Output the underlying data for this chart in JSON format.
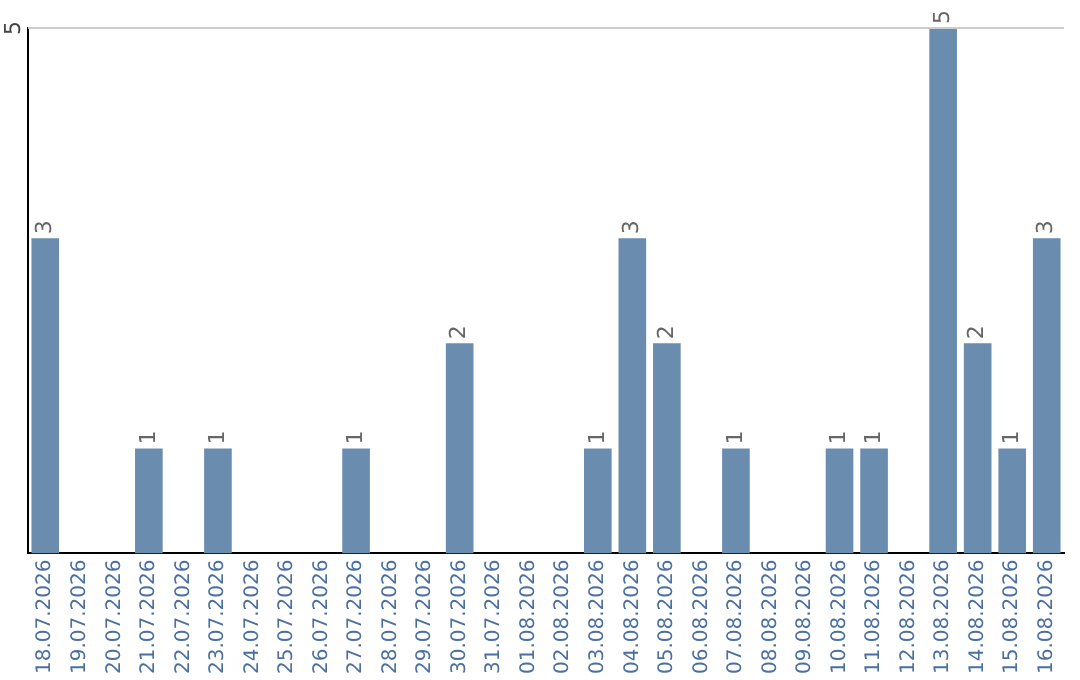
{
  "chart_data": {
    "type": "bar",
    "categories": [
      "18.07.2026",
      "19.07.2026",
      "20.07.2026",
      "21.07.2026",
      "22.07.2026",
      "23.07.2026",
      "24.07.2026",
      "25.07.2026",
      "26.07.2026",
      "27.07.2026",
      "28.07.2026",
      "29.07.2026",
      "30.07.2026",
      "31.07.2026",
      "01.08.2026",
      "02.08.2026",
      "03.08.2026",
      "04.08.2026",
      "05.08.2026",
      "06.08.2026",
      "07.08.2026",
      "08.08.2026",
      "09.08.2026",
      "10.08.2026",
      "11.08.2026",
      "12.08.2026",
      "13.08.2026",
      "14.08.2026",
      "15.08.2026",
      "16.08.2026"
    ],
    "values": [
      3,
      0,
      0,
      1,
      0,
      1,
      0,
      0,
      0,
      1,
      0,
      0,
      2,
      0,
      0,
      0,
      1,
      3,
      2,
      0,
      1,
      0,
      0,
      1,
      1,
      0,
      5,
      2,
      1,
      3
    ],
    "value_labels": [
      "3",
      null,
      null,
      "1",
      null,
      "1",
      null,
      null,
      null,
      "1",
      null,
      null,
      "2",
      null,
      null,
      null,
      "1",
      "3",
      "2",
      null,
      "1",
      null,
      null,
      "1",
      "1",
      null,
      "5",
      "2",
      "1",
      "3"
    ],
    "color": "#6a8caf",
    "ylim": [
      0,
      5
    ],
    "yticks": [
      5
    ],
    "ref_lines": [
      {
        "axis": "y",
        "value": 5,
        "color": "#cccccc"
      }
    ],
    "legend": false
  }
}
